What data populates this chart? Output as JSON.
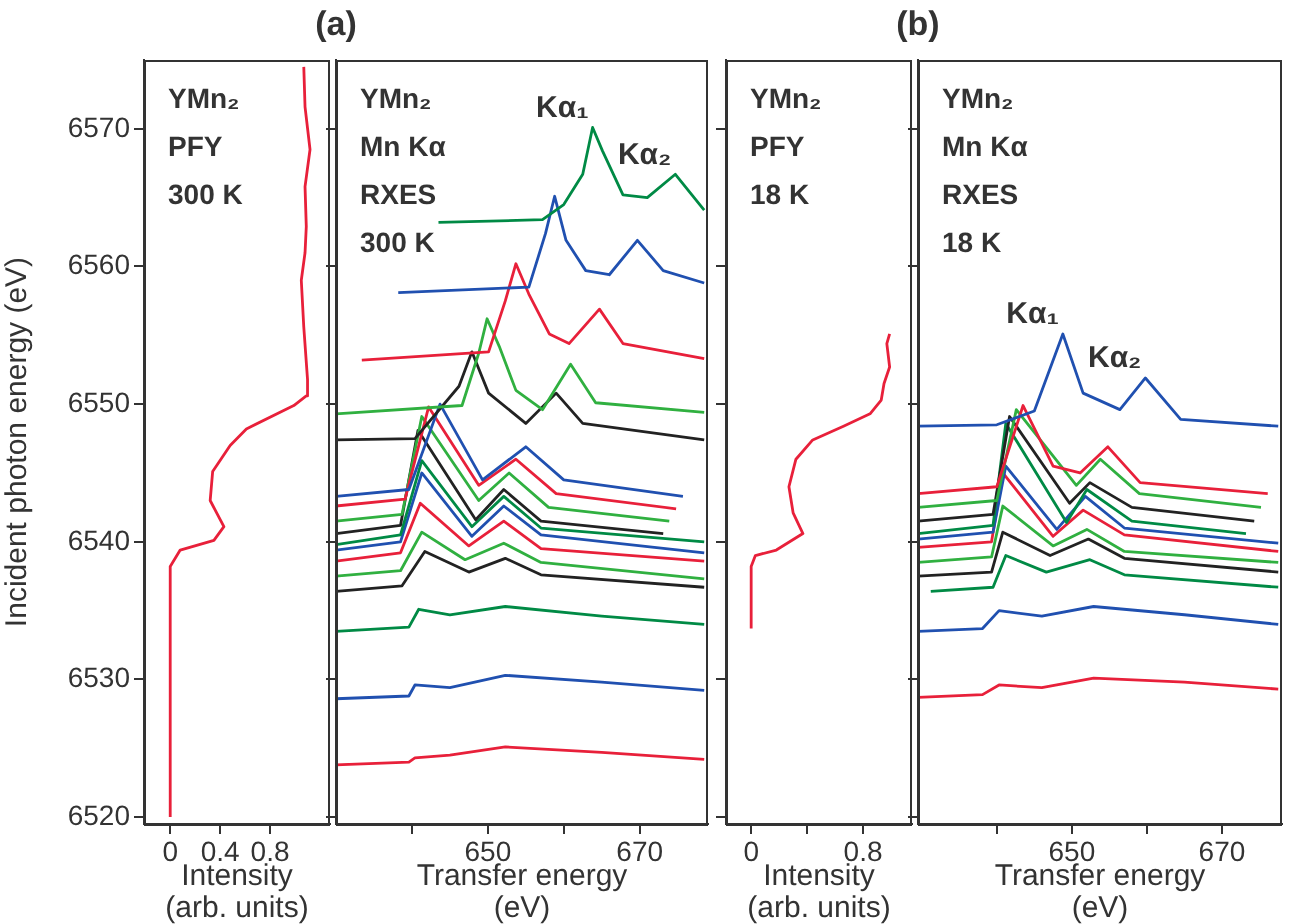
{
  "chart_data": [
    {
      "type": "line",
      "ylabel": "Incident photon energy (eV)",
      "xlabel": "Intensity (arb. units)",
      "xlim": [
        -0.21,
        1.28
      ],
      "xticks": [
        0,
        0.4,
        0.8
      ],
      "ylim": [
        6519.5,
        6575
      ],
      "yticks": [
        6520,
        6530,
        6540,
        6550,
        6560,
        6570
      ],
      "annotations": [
        "YMn₂",
        "PFY",
        "300 K"
      ],
      "series": [
        {
          "color": "#e8203a",
          "x": [
            0,
            0,
            0.08,
            0.35,
            0.43,
            0.32,
            0.34,
            0.48,
            0.61,
            0.99,
            1.09,
            1.1,
            1.07,
            1.05,
            1.08,
            1.09,
            1.08,
            1.12,
            1.08,
            1.07
          ],
          "values": [
            6520,
            6538.2,
            6539.4,
            6540.1,
            6541.1,
            6543.0,
            6545.1,
            6547.0,
            6548.2,
            6549.9,
            6550.6,
            6551.8,
            6555.6,
            6559.0,
            6561.0,
            6562.9,
            6565.8,
            6568.5,
            6571.6,
            6574.5
          ]
        }
      ]
    },
    {
      "type": "line",
      "title": "(a)",
      "xlabel": "Transfer energy (eV)",
      "xlim": [
        630,
        679
      ],
      "xticks": [
        {
          "value": 640,
          "label": null
        },
        650,
        {
          "value": 660,
          "label": null
        },
        670
      ],
      "ylim": [
        6519.5,
        6575
      ],
      "yticks": [
        6520,
        6530,
        6540,
        6550,
        6560,
        6570
      ],
      "tick_labels": "x",
      "annotations": [
        "YMn₂",
        "Mn Kα",
        "RXES",
        "300 K",
        "Kα₁",
        "Kα₂"
      ],
      "series": [
        {
          "color": "#008a45",
          "x": [
            643.5,
            657.2,
            660,
            662.5,
            663.8,
            665.1,
            667.8,
            671,
            674.7,
            678.5
          ],
          "values": [
            6563.2,
            6563.4,
            6564.5,
            6566.7,
            6570.1,
            6568.4,
            6565.2,
            6565.0,
            6566.7,
            6564.1
          ]
        },
        {
          "color": "#2050b0",
          "x": [
            638.2,
            655.4,
            657.6,
            658.8,
            660.3,
            662.9,
            666.0,
            669.7,
            673.1,
            678.5
          ],
          "values": [
            6558.1,
            6558.5,
            6562.4,
            6565.1,
            6561.9,
            6559.7,
            6559.4,
            6561.9,
            6559.7,
            6558.8
          ]
        },
        {
          "color": "#e8203a",
          "x": [
            633.4,
            650.1,
            652.3,
            653.7,
            655.4,
            658.1,
            660.7,
            664.7,
            667.8,
            678.5
          ],
          "values": [
            6553.2,
            6553.8,
            6557.5,
            6560.2,
            6558.0,
            6555.1,
            6554.4,
            6556.9,
            6554.4,
            6553.3
          ]
        },
        {
          "color": "#30b040",
          "x": [
            630,
            646.6,
            648.8,
            649.9,
            651.5,
            653.7,
            657.2,
            660.9,
            664.2,
            678.5
          ],
          "values": [
            6549.3,
            6549.9,
            6553.7,
            6556.2,
            6554.2,
            6551.0,
            6549.6,
            6552.9,
            6550.1,
            6549.4
          ]
        },
        {
          "color": "#222222",
          "x": [
            630,
            640.4,
            646.2,
            647.9,
            650.1,
            655.0,
            659.0,
            662.5,
            678.5
          ],
          "values": [
            6547.4,
            6547.5,
            6551.3,
            6553.8,
            6550.8,
            6548.6,
            6550.8,
            6548.6,
            6547.4
          ]
        },
        {
          "color": "#2050b0",
          "x": [
            630,
            639.6,
            643.7,
            649.3,
            655.0,
            660,
            675.7
          ],
          "values": [
            6543.3,
            6543.8,
            6550.0,
            6544.5,
            6546.9,
            6544.5,
            6543.3
          ]
        },
        {
          "color": "#e8203a",
          "x": [
            630,
            639.1,
            642.2,
            648.8,
            653.7,
            659,
            674.8
          ],
          "values": [
            6542.6,
            6543.1,
            6549.8,
            6544.1,
            6546.0,
            6543.5,
            6542.4
          ]
        },
        {
          "color": "#30b040",
          "x": [
            630,
            638.7,
            641.3,
            648.8,
            652.8,
            658,
            673.9
          ],
          "values": [
            6541.5,
            6542.0,
            6549.1,
            6543.0,
            6545.0,
            6542.5,
            6541.5
          ]
        },
        {
          "color": "#222222",
          "x": [
            630,
            638.5,
            640.8,
            648.4,
            652.1,
            657,
            673.1
          ],
          "values": [
            6540.6,
            6541.2,
            6548.1,
            6541.6,
            6543.8,
            6541.5,
            6540.6
          ]
        },
        {
          "color": "#008a45",
          "x": [
            630,
            638.5,
            641.3,
            647.9,
            652.1,
            657,
            678.5
          ],
          "values": [
            6539.8,
            6540.5,
            6545.9,
            6541.1,
            6543.3,
            6541.0,
            6540.0
          ]
        },
        {
          "color": "#2050b0",
          "x": [
            630,
            638.5,
            641.3,
            647.9,
            652.1,
            657,
            678.5
          ],
          "values": [
            6539.4,
            6540.0,
            6545.0,
            6540.4,
            6542.6,
            6540.5,
            6539.2
          ]
        },
        {
          "color": "#e8203a",
          "x": [
            630,
            638.5,
            641.1,
            647.5,
            652.1,
            657,
            678.5
          ],
          "values": [
            6538.6,
            6539.2,
            6542.8,
            6539.7,
            6541.5,
            6539.5,
            6538.6
          ]
        },
        {
          "color": "#30b040",
          "x": [
            630,
            638.5,
            641.3,
            647.0,
            652.1,
            657,
            678.5
          ],
          "values": [
            6537.5,
            6537.9,
            6540.7,
            6538.7,
            6539.9,
            6538.5,
            6537.3
          ]
        },
        {
          "color": "#222222",
          "x": [
            630,
            638.7,
            641.7,
            647.5,
            652.3,
            657,
            678.5
          ],
          "values": [
            6536.4,
            6536.8,
            6539.3,
            6537.8,
            6538.8,
            6537.6,
            6536.7
          ]
        },
        {
          "color": "#008a45",
          "x": [
            630,
            639.6,
            640.9,
            645,
            652.3,
            665,
            678.5
          ],
          "values": [
            6533.5,
            6533.8,
            6535.1,
            6534.7,
            6535.3,
            6534.6,
            6534.0
          ]
        },
        {
          "color": "#2050b0",
          "x": [
            630,
            639.6,
            640.4,
            645,
            652.3,
            665,
            678.5
          ],
          "values": [
            6528.6,
            6528.8,
            6529.6,
            6529.4,
            6530.3,
            6529.8,
            6529.2
          ]
        },
        {
          "color": "#e8203a",
          "x": [
            630,
            639.6,
            640.4,
            645,
            652.3,
            665,
            678.5
          ],
          "values": [
            6523.8,
            6524.0,
            6524.3,
            6524.5,
            6525.1,
            6524.7,
            6524.2
          ]
        }
      ]
    },
    {
      "type": "line",
      "xlabel": "Intensity (arb. units)",
      "xlim": [
        -0.18,
        1.15
      ],
      "xticks": [
        0,
        {
          "value": 0.4,
          "label": null
        },
        0.8
      ],
      "ylim": [
        6519.5,
        6575
      ],
      "yticks": [
        6520,
        6530,
        6540,
        6550,
        6560,
        6570
      ],
      "tick_labels": "x",
      "annotations": [
        "YMn₂",
        "PFY",
        "18 K"
      ],
      "series": [
        {
          "color": "#e8203a",
          "x": [
            0,
            0,
            0.03,
            0.18,
            0.37,
            0.3,
            0.27,
            0.32,
            0.44,
            0.66,
            0.85,
            0.93,
            0.95,
            0.99,
            0.97,
            0.99
          ],
          "values": [
            6533.7,
            6538.2,
            6539.0,
            6539.4,
            6540.6,
            6542.1,
            6544.0,
            6546.0,
            6547.4,
            6548.4,
            6549.3,
            6550.3,
            6551.5,
            6552.7,
            6554.4,
            6555.1
          ]
        }
      ]
    },
    {
      "type": "line",
      "title": "(b)",
      "xlabel": "Transfer energy (eV)",
      "xlim": [
        629.5,
        678
      ],
      "xticks": [
        {
          "value": 640,
          "label": null
        },
        650,
        {
          "value": 660,
          "label": null
        },
        670
      ],
      "ylim": [
        6519.5,
        6575
      ],
      "yticks": [
        6520,
        6530,
        6540,
        6550,
        6560,
        6570
      ],
      "tick_labels": "x",
      "annotations": [
        "YMn₂",
        "Mn Kα",
        "RXES",
        "18 K",
        "Kα₁",
        "Kα₂"
      ],
      "series": [
        {
          "color": "#2050b0",
          "x": [
            629.5,
            640,
            645,
            648.8,
            651.5,
            656.4,
            659.8,
            664.5,
            677.5
          ],
          "values": [
            6548.4,
            6548.5,
            6549.5,
            6555.1,
            6550.8,
            6549.6,
            6551.9,
            6548.9,
            6548.4
          ]
        },
        {
          "color": "#e8203a",
          "x": [
            629.5,
            640,
            643.5,
            647.5,
            651.1,
            654.8,
            659.1,
            676.1
          ],
          "values": [
            6543.5,
            6544.0,
            6549.9,
            6545.5,
            6545.0,
            6546.9,
            6544.3,
            6543.5
          ]
        },
        {
          "color": "#30b040",
          "x": [
            629.5,
            640,
            642.6,
            650.6,
            653.8,
            659,
            675.2
          ],
          "values": [
            6542.5,
            6543.0,
            6549.6,
            6544.1,
            6546.0,
            6543.5,
            6542.5
          ]
        },
        {
          "color": "#222222",
          "x": [
            629.5,
            639.5,
            641.7,
            649.7,
            652.4,
            658,
            674.3
          ],
          "values": [
            6541.5,
            6542.0,
            6549.1,
            6542.8,
            6544.3,
            6542.5,
            6541.5
          ]
        },
        {
          "color": "#008a45",
          "x": [
            629.5,
            639.5,
            641.2,
            649.3,
            652.0,
            658,
            673.2
          ],
          "values": [
            6540.6,
            6541.2,
            6548.6,
            6541.4,
            6543.8,
            6541.5,
            6540.6
          ]
        },
        {
          "color": "#2050b0",
          "x": [
            629.5,
            639.5,
            641.2,
            648.0,
            651.8,
            657,
            677.5
          ],
          "values": [
            6540.2,
            6540.7,
            6545.5,
            6540.9,
            6543.3,
            6541.0,
            6539.9
          ]
        },
        {
          "color": "#e8203a",
          "x": [
            629.5,
            639.3,
            640.8,
            647.5,
            651.5,
            657,
            677.5
          ],
          "values": [
            6539.6,
            6540.0,
            6545.0,
            6540.4,
            6542.3,
            6540.5,
            6539.3
          ]
        },
        {
          "color": "#30b040",
          "x": [
            629.5,
            639.3,
            640.8,
            647.5,
            652.0,
            657,
            677.5
          ],
          "values": [
            6538.5,
            6538.9,
            6542.6,
            6539.7,
            6540.9,
            6539.3,
            6538.5
          ]
        },
        {
          "color": "#222222",
          "x": [
            629.5,
            639.3,
            640.8,
            647.1,
            652.2,
            657,
            677.5
          ],
          "values": [
            6537.5,
            6537.8,
            6540.7,
            6539.0,
            6540.2,
            6538.8,
            6537.8
          ]
        },
        {
          "color": "#008a45",
          "x": [
            631.2,
            639.5,
            641.2,
            646.6,
            652.4,
            657,
            677.5
          ],
          "values": [
            6536.4,
            6536.7,
            6539.0,
            6537.8,
            6538.7,
            6537.6,
            6536.7
          ]
        },
        {
          "color": "#2050b0",
          "x": [
            629.5,
            638.1,
            640.3,
            646,
            652.9,
            665,
            677.5
          ],
          "values": [
            6533.5,
            6533.7,
            6535.0,
            6534.6,
            6535.3,
            6534.7,
            6534.0
          ]
        },
        {
          "color": "#e8203a",
          "x": [
            629.5,
            638.1,
            640.3,
            646,
            652.9,
            665,
            677.5
          ],
          "values": [
            6528.7,
            6528.9,
            6529.6,
            6529.4,
            6530.1,
            6529.8,
            6529.3
          ]
        }
      ]
    }
  ]
}
